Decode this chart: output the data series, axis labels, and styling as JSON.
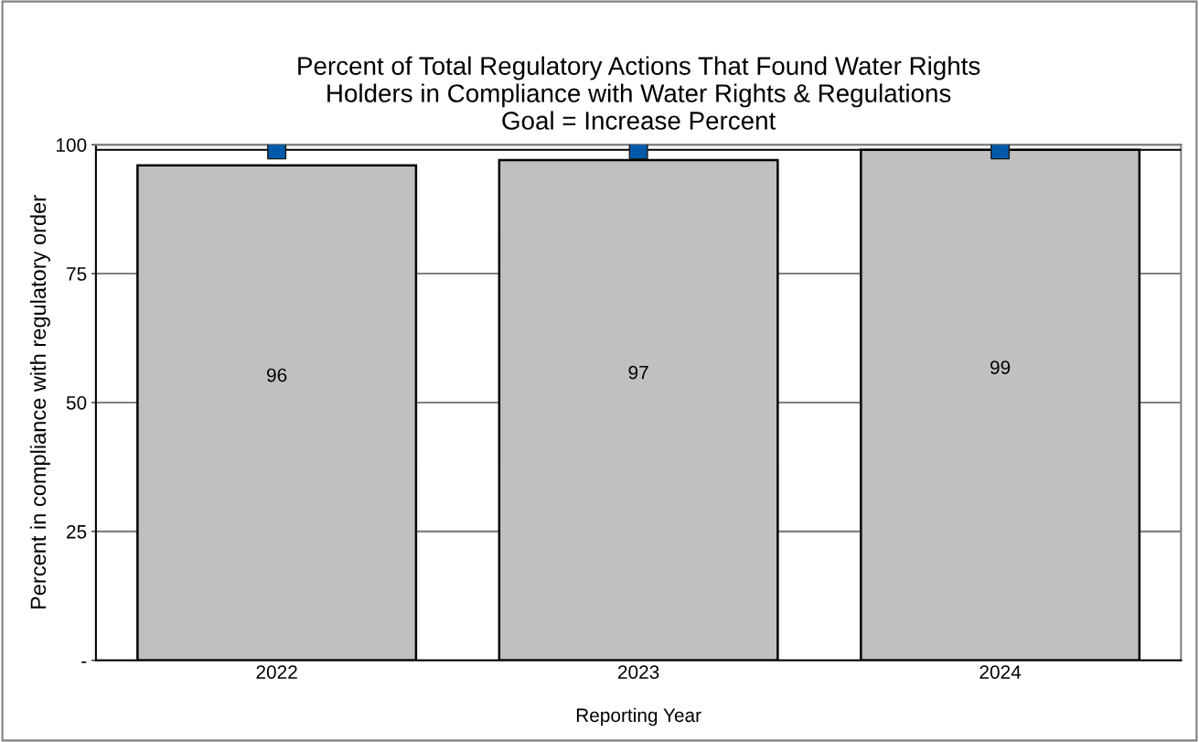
{
  "chart_data": {
    "type": "bar",
    "title": "Percent of Total Regulatory Actions That Found Water Rights\nHolders in Compliance with Water Rights & Regulations\nGoal = Increase Percent",
    "xlabel": "Reporting Year",
    "ylabel": "Percent in compliance with regulatory order",
    "categories": [
      "2022",
      "2023",
      "2024"
    ],
    "series": [
      {
        "color": "#c0c0c0",
        "values": [
          96,
          97,
          99
        ],
        "value_labels": [
          "96",
          "97",
          "99"
        ]
      },
      {
        "type": "scatter",
        "color": "#005aa8",
        "marker": "square",
        "values": [
          99,
          99,
          99
        ]
      }
    ],
    "ref_lines": [
      {
        "axis": "y",
        "value": 99,
        "color": "#000000"
      }
    ],
    "ylim": [
      0,
      100
    ],
    "yticks": [
      {
        "value": 0,
        "label": "-"
      },
      25,
      50,
      75,
      100
    ],
    "grid": "y",
    "legend": false
  }
}
